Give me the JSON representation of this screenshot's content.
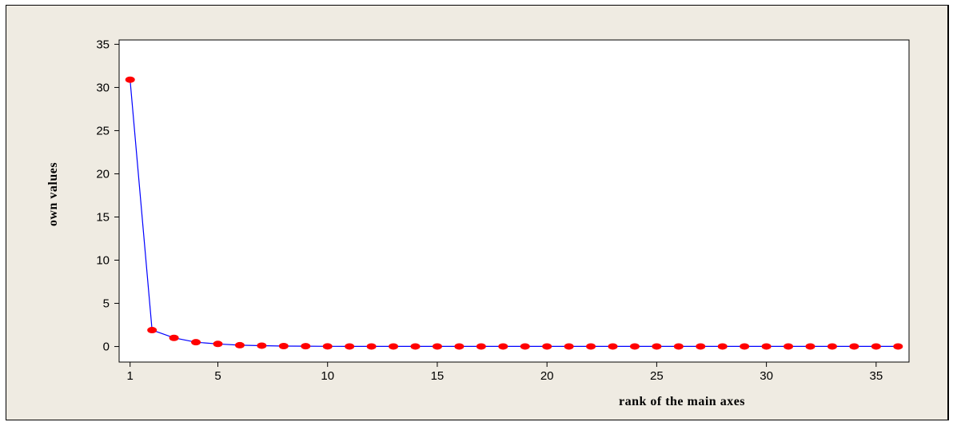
{
  "chart_data": {
    "type": "line",
    "xlabel": "rank of the main axes",
    "ylabel": "own values",
    "xlim": [
      0.5,
      36.5
    ],
    "ylim": [
      -1.8,
      35.5
    ],
    "x_ticks": [
      1,
      5,
      10,
      15,
      20,
      25,
      30,
      35
    ],
    "y_ticks": [
      0,
      5,
      10,
      15,
      20,
      25,
      30,
      35
    ],
    "grid": false,
    "line_color": "#0000ff",
    "marker_color": "#ff0000",
    "background_color": "#efebe2",
    "plot_background_color": "#ffffff",
    "series": [
      {
        "x": [
          1,
          2,
          3,
          4,
          5,
          6,
          7,
          8,
          9,
          10,
          11,
          12,
          13,
          14,
          15,
          16,
          17,
          18,
          19,
          20,
          21,
          22,
          23,
          24,
          25,
          26,
          27,
          28,
          29,
          30,
          31,
          32,
          33,
          34,
          35,
          36
        ],
        "values": [
          30.9,
          1.9,
          1.0,
          0.5,
          0.3,
          0.15,
          0.1,
          0.05,
          0.04,
          0.02,
          0.01,
          0.01,
          0.01,
          0.01,
          0.01,
          0.01,
          0.01,
          0.01,
          0.01,
          0.01,
          0.01,
          0.01,
          0.01,
          0.01,
          0.01,
          0.01,
          0.01,
          0.01,
          0.01,
          0.01,
          0.01,
          0.01,
          0.01,
          0.01,
          0.01,
          0.01
        ]
      }
    ]
  }
}
